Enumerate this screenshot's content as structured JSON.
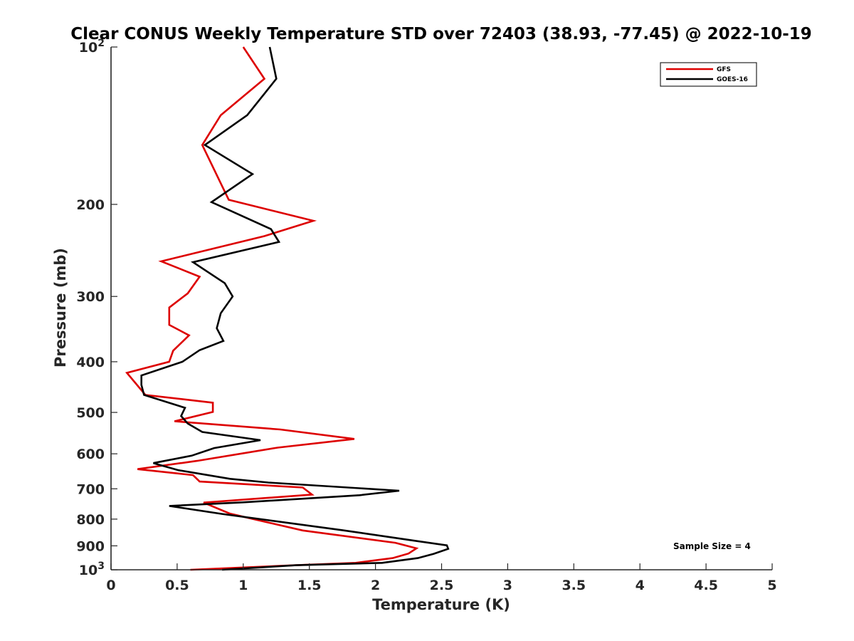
{
  "chart_data": {
    "type": "line",
    "title": "Clear CONUS Weekly Temperature STD over 72403 (38.93, -77.45) @ 2022-10-19",
    "xlabel": "Temperature (K)",
    "ylabel": "Pressure (mb)",
    "xlim": [
      0,
      5
    ],
    "ylim": [
      100,
      1000
    ],
    "y_scale": "log",
    "y_reversed": true,
    "grid": false,
    "legend_position": "top-right",
    "x_ticks": [
      0,
      0.5,
      1,
      1.5,
      2,
      2.5,
      3,
      3.5,
      4,
      4.5,
      5
    ],
    "x_tick_labels": [
      "0",
      "0.5",
      "1",
      "1.5",
      "2",
      "2.5",
      "3",
      "3.5",
      "4",
      "4.5",
      "5"
    ],
    "y_ticks": [
      100,
      200,
      300,
      400,
      500,
      600,
      700,
      800,
      900,
      1000
    ],
    "y_tick_labels": [
      {
        "base": "10",
        "exp": "2"
      },
      {
        "base": "200",
        "exp": ""
      },
      {
        "base": "300",
        "exp": ""
      },
      {
        "base": "400",
        "exp": ""
      },
      {
        "base": "500",
        "exp": ""
      },
      {
        "base": "600",
        "exp": ""
      },
      {
        "base": "700",
        "exp": ""
      },
      {
        "base": "800",
        "exp": ""
      },
      {
        "base": "900",
        "exp": ""
      },
      {
        "base": "10",
        "exp": "3"
      }
    ],
    "annotation": "Sample Size = 4",
    "series": [
      {
        "name": "GFS",
        "color": "#dd0000",
        "points": [
          [
            1.0,
            100
          ],
          [
            1.16,
            115
          ],
          [
            0.83,
            135
          ],
          [
            0.69,
            154
          ],
          [
            0.89,
            196
          ],
          [
            1.53,
            215
          ],
          [
            1.16,
            230
          ],
          [
            0.38,
            257
          ],
          [
            0.67,
            275
          ],
          [
            0.58,
            296
          ],
          [
            0.44,
            315
          ],
          [
            0.44,
            340
          ],
          [
            0.59,
            356
          ],
          [
            0.47,
            381
          ],
          [
            0.44,
            400
          ],
          [
            0.12,
            420
          ],
          [
            0.26,
            463
          ],
          [
            0.77,
            479
          ],
          [
            0.77,
            499
          ],
          [
            0.48,
            520
          ],
          [
            1.28,
            539
          ],
          [
            1.84,
            562
          ],
          [
            1.26,
            584
          ],
          [
            0.65,
            619
          ],
          [
            0.2,
            642
          ],
          [
            0.62,
            659
          ],
          [
            0.67,
            678
          ],
          [
            1.45,
            696
          ],
          [
            1.52,
            718
          ],
          [
            0.7,
            744
          ],
          [
            0.9,
            781
          ],
          [
            1.45,
            841
          ],
          [
            2.15,
            888
          ],
          [
            2.31,
            910
          ],
          [
            2.25,
            931
          ],
          [
            2.13,
            950
          ],
          [
            1.85,
            970
          ],
          [
            1.4,
            980
          ],
          [
            1.0,
            990
          ],
          [
            0.6,
            1000
          ]
        ]
      },
      {
        "name": "GOES-16",
        "color": "#000000",
        "points": [
          [
            1.2,
            100
          ],
          [
            1.25,
            115
          ],
          [
            1.03,
            135
          ],
          [
            0.71,
            154
          ],
          [
            1.07,
            175
          ],
          [
            0.76,
            198
          ],
          [
            1.21,
            223
          ],
          [
            1.27,
            236
          ],
          [
            0.62,
            258
          ],
          [
            0.86,
            283
          ],
          [
            0.92,
            300
          ],
          [
            0.83,
            323
          ],
          [
            0.8,
            345
          ],
          [
            0.85,
            365
          ],
          [
            0.67,
            380
          ],
          [
            0.54,
            400
          ],
          [
            0.23,
            425
          ],
          [
            0.23,
            443
          ],
          [
            0.25,
            463
          ],
          [
            0.56,
            490
          ],
          [
            0.53,
            508
          ],
          [
            0.58,
            525
          ],
          [
            0.69,
            545
          ],
          [
            1.13,
            565
          ],
          [
            0.78,
            585
          ],
          [
            0.61,
            605
          ],
          [
            0.32,
            625
          ],
          [
            0.51,
            645
          ],
          [
            0.9,
            670
          ],
          [
            1.19,
            681
          ],
          [
            2.18,
            706
          ],
          [
            1.88,
            720
          ],
          [
            1.0,
            743
          ],
          [
            0.44,
            755
          ],
          [
            0.84,
            782
          ],
          [
            1.75,
            840
          ],
          [
            2.3,
            880
          ],
          [
            2.54,
            898
          ],
          [
            2.55,
            912
          ],
          [
            2.44,
            932
          ],
          [
            2.32,
            950
          ],
          [
            2.05,
            970
          ],
          [
            1.4,
            980
          ],
          [
            0.84,
            1000
          ]
        ]
      }
    ]
  }
}
